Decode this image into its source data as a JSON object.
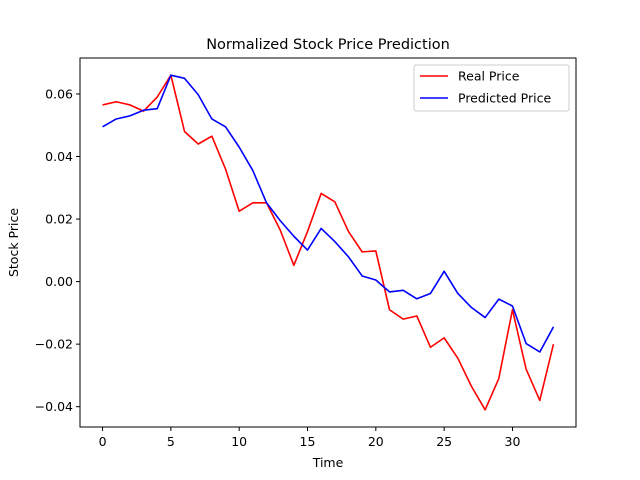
{
  "chart_data": {
    "type": "line",
    "title": "Normalized Stock Price Prediction",
    "xlabel": "Time",
    "ylabel": "Stock Price",
    "xlim": [
      -1.65,
      34.65
    ],
    "ylim": [
      -0.0465,
      0.0715
    ],
    "xticks": [
      0,
      5,
      10,
      15,
      20,
      25,
      30
    ],
    "xtick_labels": [
      "0",
      "5",
      "10",
      "15",
      "20",
      "25",
      "30"
    ],
    "yticks": [
      -0.04,
      -0.02,
      0.0,
      0.02,
      0.04,
      0.06
    ],
    "ytick_labels": [
      "−0.04",
      "−0.02",
      "0.00",
      "0.02",
      "0.04",
      "0.06"
    ],
    "grid": false,
    "legend_position": "top-right",
    "x": [
      0,
      1,
      2,
      3,
      4,
      5,
      6,
      7,
      8,
      9,
      10,
      11,
      12,
      13,
      14,
      15,
      16,
      17,
      18,
      19,
      20,
      21,
      22,
      23,
      24,
      25,
      26,
      27,
      28,
      29,
      30,
      31,
      32,
      33
    ],
    "series": [
      {
        "name": "Real Price",
        "color": "#ff0000",
        "values": [
          0.0565,
          0.0575,
          0.0565,
          0.0545,
          0.059,
          0.066,
          0.048,
          0.044,
          0.0465,
          0.036,
          0.0225,
          0.0252,
          0.0252,
          0.0165,
          0.0052,
          0.016,
          0.0282,
          0.0255,
          0.016,
          0.0095,
          0.0098,
          -0.009,
          -0.012,
          -0.011,
          -0.021,
          -0.018,
          -0.0245,
          -0.0335,
          -0.041,
          -0.031,
          -0.009,
          -0.028,
          -0.038,
          -0.02
        ]
      },
      {
        "name": "Predicted Price",
        "color": "#0000ff",
        "values": [
          0.0495,
          0.052,
          0.053,
          0.0548,
          0.0553,
          0.066,
          0.065,
          0.0598,
          0.052,
          0.0495,
          0.043,
          0.0355,
          0.0252,
          0.0195,
          0.0145,
          0.0101,
          0.017,
          0.0128,
          0.0079,
          0.0018,
          0.0005,
          -0.0033,
          -0.0028,
          -0.0055,
          -0.0038,
          0.0033,
          -0.0038,
          -0.0083,
          -0.0115,
          -0.0056,
          -0.0078,
          -0.0198,
          -0.0225,
          -0.0145
        ]
      }
    ]
  }
}
